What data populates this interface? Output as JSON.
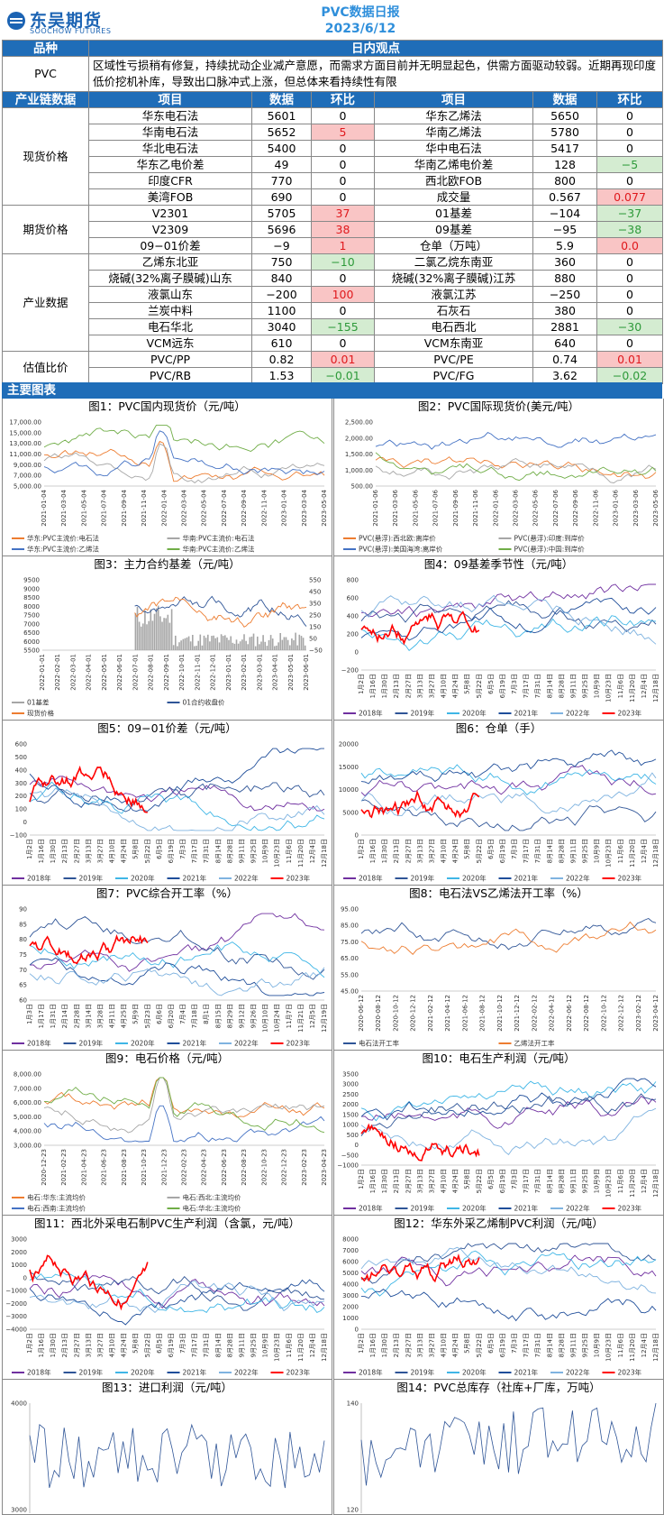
{
  "header": {
    "logo_cn": "东吴期货",
    "logo_en": "SOOCHOW FUTURES",
    "title": "PVC数据日报",
    "date": "2023/6/12"
  },
  "table": {
    "h_variety": "品种",
    "h_view": "日内观点",
    "variety": "PVC",
    "view": "区域性亏损稍有修复，持续扰动企业减产意愿，而需求方面目前并无明显起色，供需方面驱动较弱。近期再现印度低价挖机补库，导致出口脉冲式上涨，但总体来看持续性有限",
    "h_chain": "产业链数据",
    "h_item": "项目",
    "h_data": "数据",
    "h_chg": "环比",
    "cats": [
      "现货价格",
      "期货价格",
      "产业数据",
      "估值比价"
    ],
    "rows": [
      [
        "华东电石法",
        "5601",
        "0",
        "",
        "华东乙烯法",
        "5650",
        "0",
        ""
      ],
      [
        "华南电石法",
        "5652",
        "5",
        "r",
        "华南乙烯法",
        "5780",
        "0",
        ""
      ],
      [
        "华北电石法",
        "5400",
        "0",
        "",
        "华中电石法",
        "5417",
        "0",
        ""
      ],
      [
        "华东乙电价差",
        "49",
        "0",
        "",
        "华南乙烯电价差",
        "128",
        "−5",
        "g"
      ],
      [
        "印度CFR",
        "770",
        "0",
        "",
        "西北欧FOB",
        "800",
        "0",
        ""
      ],
      [
        "美湾FOB",
        "690",
        "0",
        "",
        "成交量",
        "0.567",
        "0.077",
        "r"
      ],
      [
        "V2301",
        "5705",
        "37",
        "r",
        "01基差",
        "−104",
        "−37",
        "g"
      ],
      [
        "V2309",
        "5696",
        "38",
        "r",
        "09基差",
        "−95",
        "−38",
        "g"
      ],
      [
        "09−01价差",
        "−9",
        "1",
        "r",
        "仓单（万吨）",
        "5.9",
        "0.0",
        "r"
      ],
      [
        "乙烯东北亚",
        "750",
        "−10",
        "g",
        "二氯乙烷东南亚",
        "360",
        "0",
        ""
      ],
      [
        "烧碱(32%离子膜碱)山东",
        "840",
        "0",
        "",
        "烧碱(32%离子膜碱)江苏",
        "880",
        "0",
        ""
      ],
      [
        "液氯山东",
        "−200",
        "100",
        "r",
        "液氯江苏",
        "−250",
        "0",
        ""
      ],
      [
        "兰炭中料",
        "1100",
        "0",
        "",
        "石灰石",
        "380",
        "0",
        ""
      ],
      [
        "电石华北",
        "3040",
        "−155",
        "g",
        "电石西北",
        "2881",
        "−30",
        "g"
      ],
      [
        "VCM远东",
        "610",
        "0",
        "",
        "VCM东南亚",
        "640",
        "0",
        ""
      ],
      [
        "PVC/PP",
        "0.82",
        "0.01",
        "r",
        "PVC/PE",
        "0.74",
        "0.01",
        "r"
      ],
      [
        "PVC/RB",
        "1.53",
        "−0.01",
        "g",
        "PVC/FG",
        "3.62",
        "−0.02",
        "g"
      ]
    ]
  },
  "section": "主要图表",
  "charts": [
    {
      "title": "图1：PVC国内现货价（元/吨）",
      "yticks": [
        "17,000.00",
        "15,000.00",
        "13,000.00",
        "11,000.00",
        "9,000.00",
        "7,000.00",
        "5,000.00"
      ],
      "xticks": [
        "2021-01-04",
        "2021-03-04",
        "2021-05-04",
        "2021-07-04",
        "2021-09-04",
        "2021-11-04",
        "2022-01-04",
        "2022-03-04",
        "2022-05-04",
        "2022-07-04",
        "2022-09-04",
        "2022-11-04",
        "2023-01-04",
        "2023-03-04",
        "2023-05-04"
      ],
      "legend": [
        "华东:PVC主流价:电石法",
        "华南:PVC主流价:电石法",
        "华东:PVC主流价:乙烯法",
        "华南:PVC主流价:乙烯法"
      ]
    },
    {
      "title": "图2：PVC国际现货价(美元/吨）",
      "yticks": [
        "2,500.00",
        "2,000.00",
        "1,500.00",
        "1,000.00",
        "500.00"
      ],
      "xticks": [
        "2021-01-06",
        "2021-03-06",
        "2021-05-06",
        "2021-07-06",
        "2021-09-06",
        "2021-11-06",
        "2022-01-06",
        "2022-03-06",
        "2022-05-06",
        "2022-07-06",
        "2022-09-06",
        "2022-11-06",
        "2023-01-06",
        "2023-03-06",
        "2023-05-06"
      ],
      "legend": [
        "PVC(悬浮):西北欧:离岸价",
        "PVC(悬浮):印度:到岸价",
        "PVC(悬浮):美国海湾:离岸价",
        "PVC(悬浮):中国:到岸价"
      ]
    },
    {
      "title": "图3：主力合约基差（元/吨）",
      "yticks": [
        "9500",
        "9000",
        "8500",
        "8000",
        "7500",
        "7000",
        "6500",
        "6000",
        "5500"
      ],
      "y2ticks": [
        "550",
        "450",
        "350",
        "250",
        "150",
        "50",
        "−50"
      ],
      "xticks": [
        "2022-01-01",
        "2022-02-01",
        "2022-03-01",
        "2022-04-01",
        "2022-05-01",
        "2022-06-01",
        "2022-07-01",
        "2022-08-01",
        "2022-09-01",
        "2022-10-01",
        "2022-11-01",
        "2022-12-01",
        "2023-01-01",
        "2023-02-01",
        "2023-03-01",
        "2023-04-01",
        "2023-05-01",
        "2023-06-01"
      ],
      "legend": [
        "01基差",
        "01合约收盘价",
        "现货价格"
      ]
    },
    {
      "title": "图4：09基差季节性（元/吨）",
      "yticks": [
        "800",
        "600",
        "400",
        "200",
        "0",
        "−200"
      ],
      "xticks": [
        "1月2日",
        "1月16日",
        "1月30日",
        "2月13日",
        "2月27日",
        "3月13日",
        "3月27日",
        "4月10日",
        "4月24日",
        "5月8日",
        "5月22日",
        "6月5日",
        "6月19日",
        "7月3日",
        "7月17日",
        "7月31日",
        "8月14日",
        "8月28日",
        "9月11日",
        "9月25日",
        "10月9日",
        "10月23日",
        "11月6日",
        "11月20日",
        "12月4日",
        "12月18日"
      ],
      "legend": [
        "2018年",
        "2019年",
        "2020年",
        "2021年",
        "2022年",
        "2023年"
      ]
    },
    {
      "title": "图5：09−01价差（元/吨）",
      "yticks": [
        "600",
        "500",
        "400",
        "300",
        "200",
        "100",
        "0",
        "−100"
      ],
      "xticks": [
        "1月2日",
        "1月16日",
        "1月30日",
        "2月13日",
        "2月27日",
        "3月13日",
        "3月27日",
        "4月10日",
        "4月24日",
        "5月8日",
        "5月22日",
        "6月5日",
        "6月19日",
        "7月3日",
        "7月17日",
        "7月31日",
        "8月14日",
        "8月28日",
        "9月11日",
        "9月25日",
        "10月9日",
        "10月23日",
        "11月6日",
        "11月20日",
        "12月4日",
        "12月18日"
      ],
      "legend": [
        "2018年",
        "2019年",
        "2020年",
        "2021年",
        "2022年",
        "2023年"
      ]
    },
    {
      "title": "图6：仓单（手）",
      "yticks": [
        "20000",
        "15000",
        "10000",
        "5000",
        "0"
      ],
      "xticks": [
        "1月2日",
        "1月16日",
        "1月30日",
        "2月13日",
        "2月27日",
        "3月13日",
        "3月27日",
        "4月10日",
        "4月24日",
        "5月8日",
        "5月22日",
        "6月5日",
        "6月19日",
        "7月3日",
        "7月17日",
        "7月31日",
        "8月14日",
        "8月28日",
        "9月11日",
        "9月25日",
        "10月9日",
        "10月23日",
        "11月6日",
        "11月20日",
        "12月4日",
        "12月18日"
      ],
      "legend": [
        "2018年",
        "2019年",
        "2020年",
        "2021年",
        "2022年",
        "2023年"
      ]
    },
    {
      "title": "图7：PVC综合开工率（%）",
      "yticks": [
        "90",
        "85",
        "80",
        "75",
        "70",
        "65",
        "60"
      ],
      "xticks": [
        "1月3日",
        "1月17日",
        "1月31日",
        "2月14日",
        "2月28日",
        "3月14日",
        "3月28日",
        "4月11日",
        "4月25日",
        "5月9日",
        "5月23日",
        "6月6日",
        "6月20日",
        "7月4日",
        "7月18日",
        "8月1日",
        "8月15日",
        "8月29日",
        "9月12日",
        "9月26日",
        "10月10日",
        "10月24日",
        "11月7日",
        "11月21日",
        "12月5日",
        "12月19日"
      ],
      "legend": [
        "2018年",
        "2019年",
        "2020年",
        "2021年",
        "2022年",
        "2023年"
      ]
    },
    {
      "title": "图8：电石法VS乙烯法开工率（%）",
      "yticks": [
        "95.00",
        "85.00",
        "75.00",
        "65.00",
        "55.00",
        "45.00"
      ],
      "xticks": [
        "2020-06-12",
        "2020-08-12",
        "2020-10-12",
        "2020-12-12",
        "2021-02-12",
        "2021-04-12",
        "2021-06-12",
        "2021-08-12",
        "2021-10-12",
        "2021-12-12",
        "2022-02-12",
        "2022-04-12",
        "2022-06-12",
        "2022-08-12",
        "2022-10-12",
        "2022-12-12",
        "2023-02-12",
        "2023-04-12"
      ],
      "legend": [
        "电石法开工率",
        "乙烯法开工率"
      ]
    },
    {
      "title": "图9：电石价格（元/吨）",
      "yticks": [
        "8,000.00",
        "7,000.00",
        "6,000.00",
        "5,000.00",
        "4,000.00",
        "3,000.00"
      ],
      "xticks": [
        "2020-12-23",
        "2021-02-23",
        "2021-04-23",
        "2021-06-23",
        "2021-08-23",
        "2021-10-23",
        "2021-12-23",
        "2022-02-23",
        "2022-04-23",
        "2022-06-23",
        "2022-08-23",
        "2022-10-23",
        "2022-12-23",
        "2023-02-23",
        "2023-04-23"
      ],
      "legend": [
        "电石:华东:主流均价",
        "电石:西北:主流均价",
        "电石:西南:主流均价",
        "电石:华北:主流均价"
      ]
    },
    {
      "title": "图10：电石生产利润（元/吨）",
      "yticks": [
        "3500",
        "3000",
        "2500",
        "2000",
        "1500",
        "1000",
        "500",
        "0",
        "−500",
        "−1000"
      ],
      "xticks": [
        "1月2日",
        "1月16日",
        "1月30日",
        "2月13日",
        "2月27日",
        "3月13日",
        "3月27日",
        "4月10日",
        "4月24日",
        "5月8日",
        "5月22日",
        "6月5日",
        "6月19日",
        "7月3日",
        "7月17日",
        "7月31日",
        "8月14日",
        "8月28日",
        "9月11日",
        "9月25日",
        "10月9日",
        "10月23日",
        "11月6日",
        "11月20日",
        "12月4日",
        "12月18日"
      ],
      "legend": [
        "2018年",
        "2019年",
        "2020年",
        "2021年",
        "2022年",
        "2023年"
      ]
    },
    {
      "title": "图11：西北外采电石制PVC生产利润（含氯，元/吨）",
      "yticks": [
        "3000",
        "2000",
        "1000",
        "0",
        "−1000",
        "−2000",
        "−3000",
        "−4000"
      ],
      "xticks": [
        "1月2日",
        "1月16日",
        "1月30日",
        "2月13日",
        "2月27日",
        "3月13日",
        "3月27日",
        "4月10日",
        "4月24日",
        "5月8日",
        "5月22日",
        "6月5日",
        "6月19日",
        "7月3日",
        "7月17日",
        "7月31日",
        "8月14日",
        "8月28日",
        "9月11日",
        "9月25日",
        "10月9日",
        "10月23日",
        "11月6日",
        "11月20日",
        "12月4日",
        "12月18日"
      ],
      "legend": [
        "2018年",
        "2019年",
        "2020年",
        "2021年",
        "2022年",
        "2023年"
      ]
    },
    {
      "title": "图12：华东外采乙烯制PVC利润（元/吨）",
      "yticks": [
        "8000",
        "7000",
        "6000",
        "5000",
        "4000",
        "3000",
        "2000",
        "1000",
        "0"
      ],
      "xticks": [
        "1月2日",
        "1月16日",
        "1月30日",
        "2月13日",
        "2月27日",
        "3月13日",
        "3月27日",
        "4月10日",
        "4月24日",
        "5月8日",
        "5月22日",
        "6月5日",
        "6月19日",
        "7月3日",
        "7月17日",
        "7月31日",
        "8月14日",
        "8月28日",
        "9月11日",
        "9月25日",
        "10月9日",
        "10月23日",
        "11月6日",
        "11月20日",
        "12月4日",
        "12月18日"
      ],
      "legend": [
        "2018年",
        "2019年",
        "2020年",
        "2021年",
        "2022年",
        "2023年"
      ]
    },
    {
      "title": "图13：进口利润（元/吨）",
      "yticks": [
        "4000",
        "3000"
      ],
      "xticks": [],
      "legend": []
    },
    {
      "title": "图14：PVC总库存（社库+厂库，万吨）",
      "yticks": [
        "140",
        "120"
      ],
      "xticks": [],
      "legend": []
    }
  ],
  "colors": {
    "blue": "#1f6db8",
    "title": "#2f8fdb"
  }
}
